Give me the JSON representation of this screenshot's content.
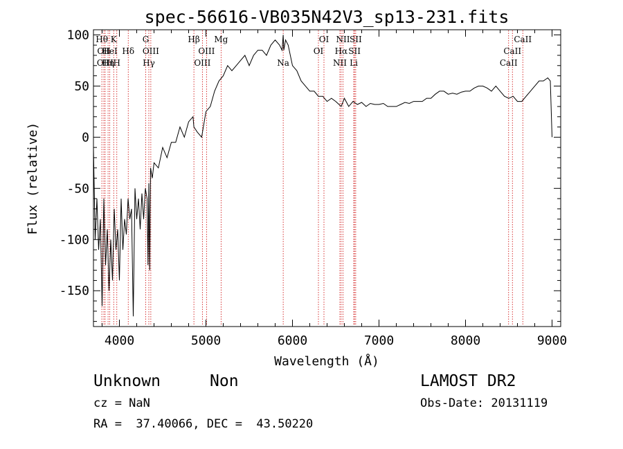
{
  "chart_data": {
    "type": "line",
    "title": "spec-56616-VB035N42V3_sp13-231.fits",
    "xlabel": "Wavelength (Å)",
    "ylabel": "Flux (relative)",
    "xlim": [
      3700,
      9100
    ],
    "ylim": [
      -185,
      105
    ],
    "xticks": [
      4000,
      5000,
      6000,
      7000,
      8000,
      9000
    ],
    "yticks": [
      100,
      50,
      0,
      -50,
      -100,
      -150
    ],
    "line_color": "#000000",
    "marker_color": "#cc0000",
    "spectrum": {
      "x": [
        3700,
        3720,
        3740,
        3760,
        3780,
        3800,
        3820,
        3840,
        3860,
        3880,
        3900,
        3920,
        3940,
        3960,
        3980,
        4000,
        4020,
        4040,
        4060,
        4080,
        4100,
        4120,
        4140,
        4160,
        4180,
        4200,
        4220,
        4240,
        4260,
        4280,
        4300,
        4320,
        4330,
        4340,
        4350,
        4360,
        4380,
        4400,
        4450,
        4500,
        4550,
        4600,
        4650,
        4700,
        4750,
        4800,
        4850,
        4861,
        4900,
        4950,
        5000,
        5050,
        5100,
        5150,
        5200,
        5250,
        5300,
        5350,
        5400,
        5450,
        5500,
        5550,
        5600,
        5650,
        5700,
        5750,
        5800,
        5850,
        5880,
        5893,
        5900,
        5920,
        5950,
        6000,
        6050,
        6100,
        6150,
        6200,
        6250,
        6300,
        6350,
        6400,
        6450,
        6500,
        6563,
        6600,
        6650,
        6700,
        6750,
        6800,
        6850,
        6900,
        6950,
        7000,
        7050,
        7100,
        7150,
        7200,
        7250,
        7300,
        7350,
        7400,
        7450,
        7500,
        7550,
        7600,
        7650,
        7700,
        7750,
        7800,
        7850,
        7900,
        7950,
        8000,
        8050,
        8100,
        8150,
        8200,
        8250,
        8300,
        8350,
        8400,
        8450,
        8500,
        8550,
        8600,
        8650,
        8700,
        8750,
        8800,
        8850,
        8900,
        8950,
        8980,
        9000
      ],
      "y": [
        -10,
        -100,
        -60,
        -110,
        -80,
        -165,
        -60,
        -125,
        -90,
        -150,
        -100,
        -140,
        -70,
        -110,
        -90,
        -140,
        -60,
        -110,
        -80,
        -95,
        -60,
        -80,
        -70,
        -175,
        -50,
        -80,
        -60,
        -90,
        -55,
        -80,
        -50,
        -60,
        -125,
        -45,
        -130,
        -30,
        -40,
        -25,
        -30,
        -10,
        -20,
        -5,
        -5,
        10,
        0,
        15,
        20,
        10,
        5,
        0,
        25,
        30,
        45,
        55,
        60,
        70,
        65,
        70,
        75,
        80,
        70,
        80,
        85,
        85,
        80,
        90,
        95,
        90,
        85,
        100,
        85,
        95,
        90,
        70,
        65,
        55,
        50,
        45,
        45,
        40,
        40,
        35,
        38,
        35,
        30,
        38,
        30,
        35,
        32,
        34,
        30,
        33,
        32,
        32,
        33,
        30,
        30,
        30,
        32,
        34,
        33,
        35,
        35,
        35,
        38,
        38,
        42,
        45,
        45,
        42,
        43,
        42,
        44,
        45,
        45,
        48,
        50,
        50,
        48,
        45,
        50,
        45,
        40,
        38,
        40,
        35,
        35,
        40,
        45,
        50,
        55,
        55,
        58,
        55,
        0
      ]
    },
    "lines": [
      {
        "w": 3797,
        "label": "Hθ",
        "row": 1
      },
      {
        "w": 3820,
        "label": "OII",
        "row": 2
      },
      {
        "w": 3835,
        "label": "OIII",
        "row": 3
      },
      {
        "w": 3869,
        "label": "Hη",
        "row": 3
      },
      {
        "w": 3889,
        "label": "HeI",
        "row": 2
      },
      {
        "w": 3934,
        "label": "K",
        "row": 1
      },
      {
        "w": 3970,
        "label": "H",
        "row": 3
      },
      {
        "w": 4102,
        "label": "Hδ",
        "row": 2
      },
      {
        "w": 4304,
        "label": "G",
        "row": 1
      },
      {
        "w": 4340,
        "label": "Hγ",
        "row": 3
      },
      {
        "w": 4363,
        "label": "OIII",
        "row": 2
      },
      {
        "w": 4861,
        "label": "Hβ",
        "row": 1
      },
      {
        "w": 4959,
        "label": "OIII",
        "row": 3
      },
      {
        "w": 5007,
        "label": "OIII",
        "row": 2
      },
      {
        "w": 5175,
        "label": "Mg",
        "row": 1
      },
      {
        "w": 5893,
        "label": "Na",
        "row": 3
      },
      {
        "w": 6300,
        "label": "OI",
        "row": 2
      },
      {
        "w": 6364,
        "label": "OI",
        "row": 1
      },
      {
        "w": 6548,
        "label": "NII",
        "row": 3
      },
      {
        "w": 6563,
        "label": "Hα",
        "row": 2
      },
      {
        "w": 6584,
        "label": "NII",
        "row": 1
      },
      {
        "w": 6708,
        "label": "Li",
        "row": 3
      },
      {
        "w": 6717,
        "label": "SII",
        "row": 2
      },
      {
        "w": 6731,
        "label": "SII",
        "row": 1
      },
      {
        "w": 8498,
        "label": "CaII",
        "row": 3
      },
      {
        "w": 8542,
        "label": "CaII",
        "row": 2
      },
      {
        "w": 8662,
        "label": "CaII",
        "row": 1
      }
    ]
  },
  "info": {
    "class": "Unknown",
    "subclass": "Non",
    "survey": "LAMOST DR2",
    "cz": "cz = NaN",
    "obs_date": "Obs-Date: 20131119",
    "radec": "RA =  37.40066, DEC =  43.50220"
  }
}
